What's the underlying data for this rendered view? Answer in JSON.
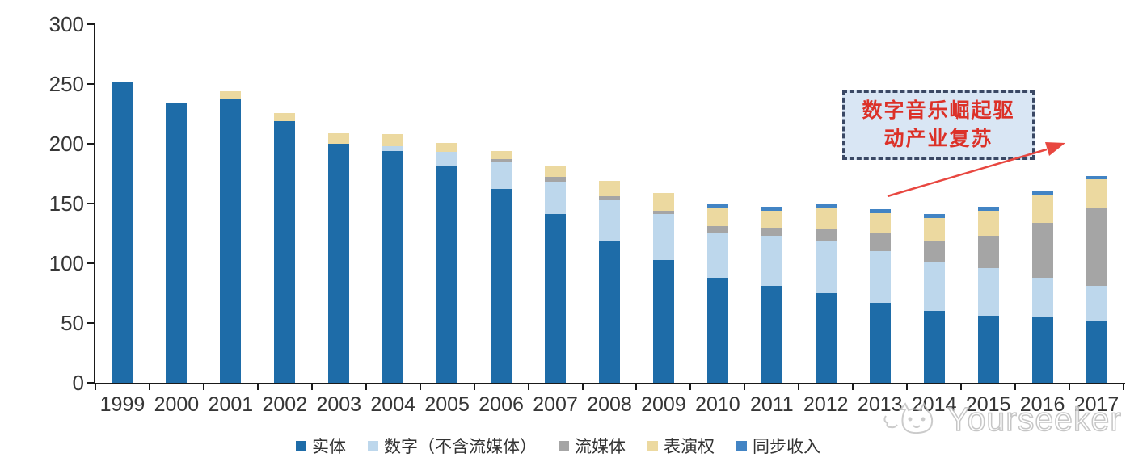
{
  "chart_data": {
    "type": "bar",
    "stacked": true,
    "title": "",
    "xlabel": "",
    "ylabel": "",
    "categories": [
      "1999",
      "2000",
      "2001",
      "2002",
      "2003",
      "2004",
      "2005",
      "2006",
      "2007",
      "2008",
      "2009",
      "2010",
      "2011",
      "2012",
      "2013",
      "2014",
      "2015",
      "2016",
      "2017"
    ],
    "series": [
      {
        "name": "实体",
        "color": "#1e6ca8",
        "values": [
          252,
          234,
          238,
          219,
          200,
          194,
          181,
          162,
          141,
          119,
          103,
          88,
          81,
          75,
          67,
          60,
          56,
          55,
          52
        ]
      },
      {
        "name": "数字（不含流媒体）",
        "color": "#bdd7ec",
        "values": [
          0,
          0,
          0,
          0,
          0,
          4,
          12,
          23,
          27,
          34,
          38,
          37,
          42,
          44,
          43,
          41,
          40,
          33,
          29
        ]
      },
      {
        "name": "流媒体",
        "color": "#a5a5a5",
        "values": [
          0,
          0,
          0,
          0,
          0,
          0,
          0,
          2,
          4,
          3,
          3,
          6,
          7,
          10,
          15,
          18,
          27,
          46,
          65
        ]
      },
      {
        "name": "表演权",
        "color": "#ecd9a0",
        "values": [
          0,
          0,
          6,
          7,
          9,
          10,
          8,
          7,
          10,
          13,
          15,
          15,
          14,
          17,
          17,
          19,
          21,
          23,
          24
        ]
      },
      {
        "name": "同步收入",
        "color": "#4284c4",
        "values": [
          0,
          0,
          0,
          0,
          0,
          0,
          0,
          0,
          0,
          0,
          0,
          3,
          3,
          3,
          3,
          3,
          3,
          3,
          3
        ]
      }
    ],
    "ylim": [
      0,
      300
    ],
    "yticks": [
      0,
      50,
      100,
      150,
      200,
      250,
      300
    ],
    "grid": false,
    "legend_position": "bottom"
  },
  "annotation": {
    "lines": [
      "数字音乐崛起驱",
      "动产业复苏"
    ],
    "text_color": "#dc3128",
    "box_fill": "#d9e6f4",
    "box_border": "#3a4864",
    "arrow_color": "#e84740"
  },
  "watermark": {
    "text": "Yourseeker"
  }
}
